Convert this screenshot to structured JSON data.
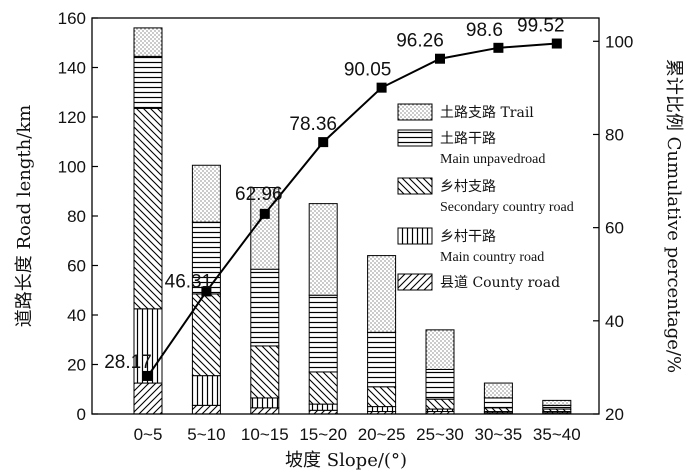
{
  "chart_data": {
    "type": "bar",
    "subtype": "stacked-bar-with-cumulative-line",
    "categories": [
      "0~5",
      "5~10",
      "10~15",
      "15~20",
      "20~25",
      "25~30",
      "30~35",
      "35~40"
    ],
    "series": [
      {
        "name": "县道 County road",
        "name_cn": "县道",
        "name_en": "County road",
        "pattern": "diag-fwd",
        "values": [
          12.5,
          3.5,
          2.5,
          1.5,
          1.0,
          1.0,
          0.5,
          0.5
        ]
      },
      {
        "name": "乡村干路 Main country road",
        "name_cn": "乡村干路",
        "name_en": "Main country road",
        "pattern": "vertical",
        "values": [
          30,
          12,
          4,
          2.5,
          2,
          1,
          0.5,
          0.5
        ]
      },
      {
        "name": "乡村支路 Secondary country road",
        "name_cn": "乡村支路",
        "name_en": "Secondary country road",
        "pattern": "diag-back",
        "values": [
          81,
          33,
          21,
          13,
          8,
          4,
          1.5,
          1
        ]
      },
      {
        "name": "土路干路 Main unpavedroad",
        "name_cn": "土路干路",
        "name_en": "Main unpavedroad",
        "pattern": "horizontal",
        "values": [
          21,
          29,
          31,
          31,
          22,
          12,
          4,
          1.5
        ]
      },
      {
        "name": "土路支路 Trail",
        "name_cn": "土路支路",
        "name_en": "Trail",
        "pattern": "dots",
        "values": [
          11.5,
          23,
          33,
          37,
          31,
          16,
          6,
          2
        ]
      }
    ],
    "cumulative": {
      "values": [
        28.17,
        46.31,
        62.96,
        78.36,
        90.05,
        96.26,
        98.6,
        99.52
      ],
      "labels": [
        "28.17",
        "46.31",
        "62.96",
        "78.36",
        "90.05",
        "96.26",
        "98.6",
        "99.52"
      ]
    },
    "legend_order": [
      4,
      3,
      2,
      1,
      0
    ],
    "xlabel": "坡度 Slope/(°)",
    "ylabel": "道路长度 Road length/km",
    "y2label": "累计比例 Cumulative percentage/%",
    "ylim": [
      0,
      160
    ],
    "yticks": [
      0,
      20,
      40,
      60,
      80,
      100,
      120,
      140,
      160
    ],
    "y2lim": [
      20,
      105
    ],
    "y2ticks": [
      20,
      40,
      60,
      80,
      100
    ],
    "grid": false,
    "legend_position": "right-center"
  }
}
